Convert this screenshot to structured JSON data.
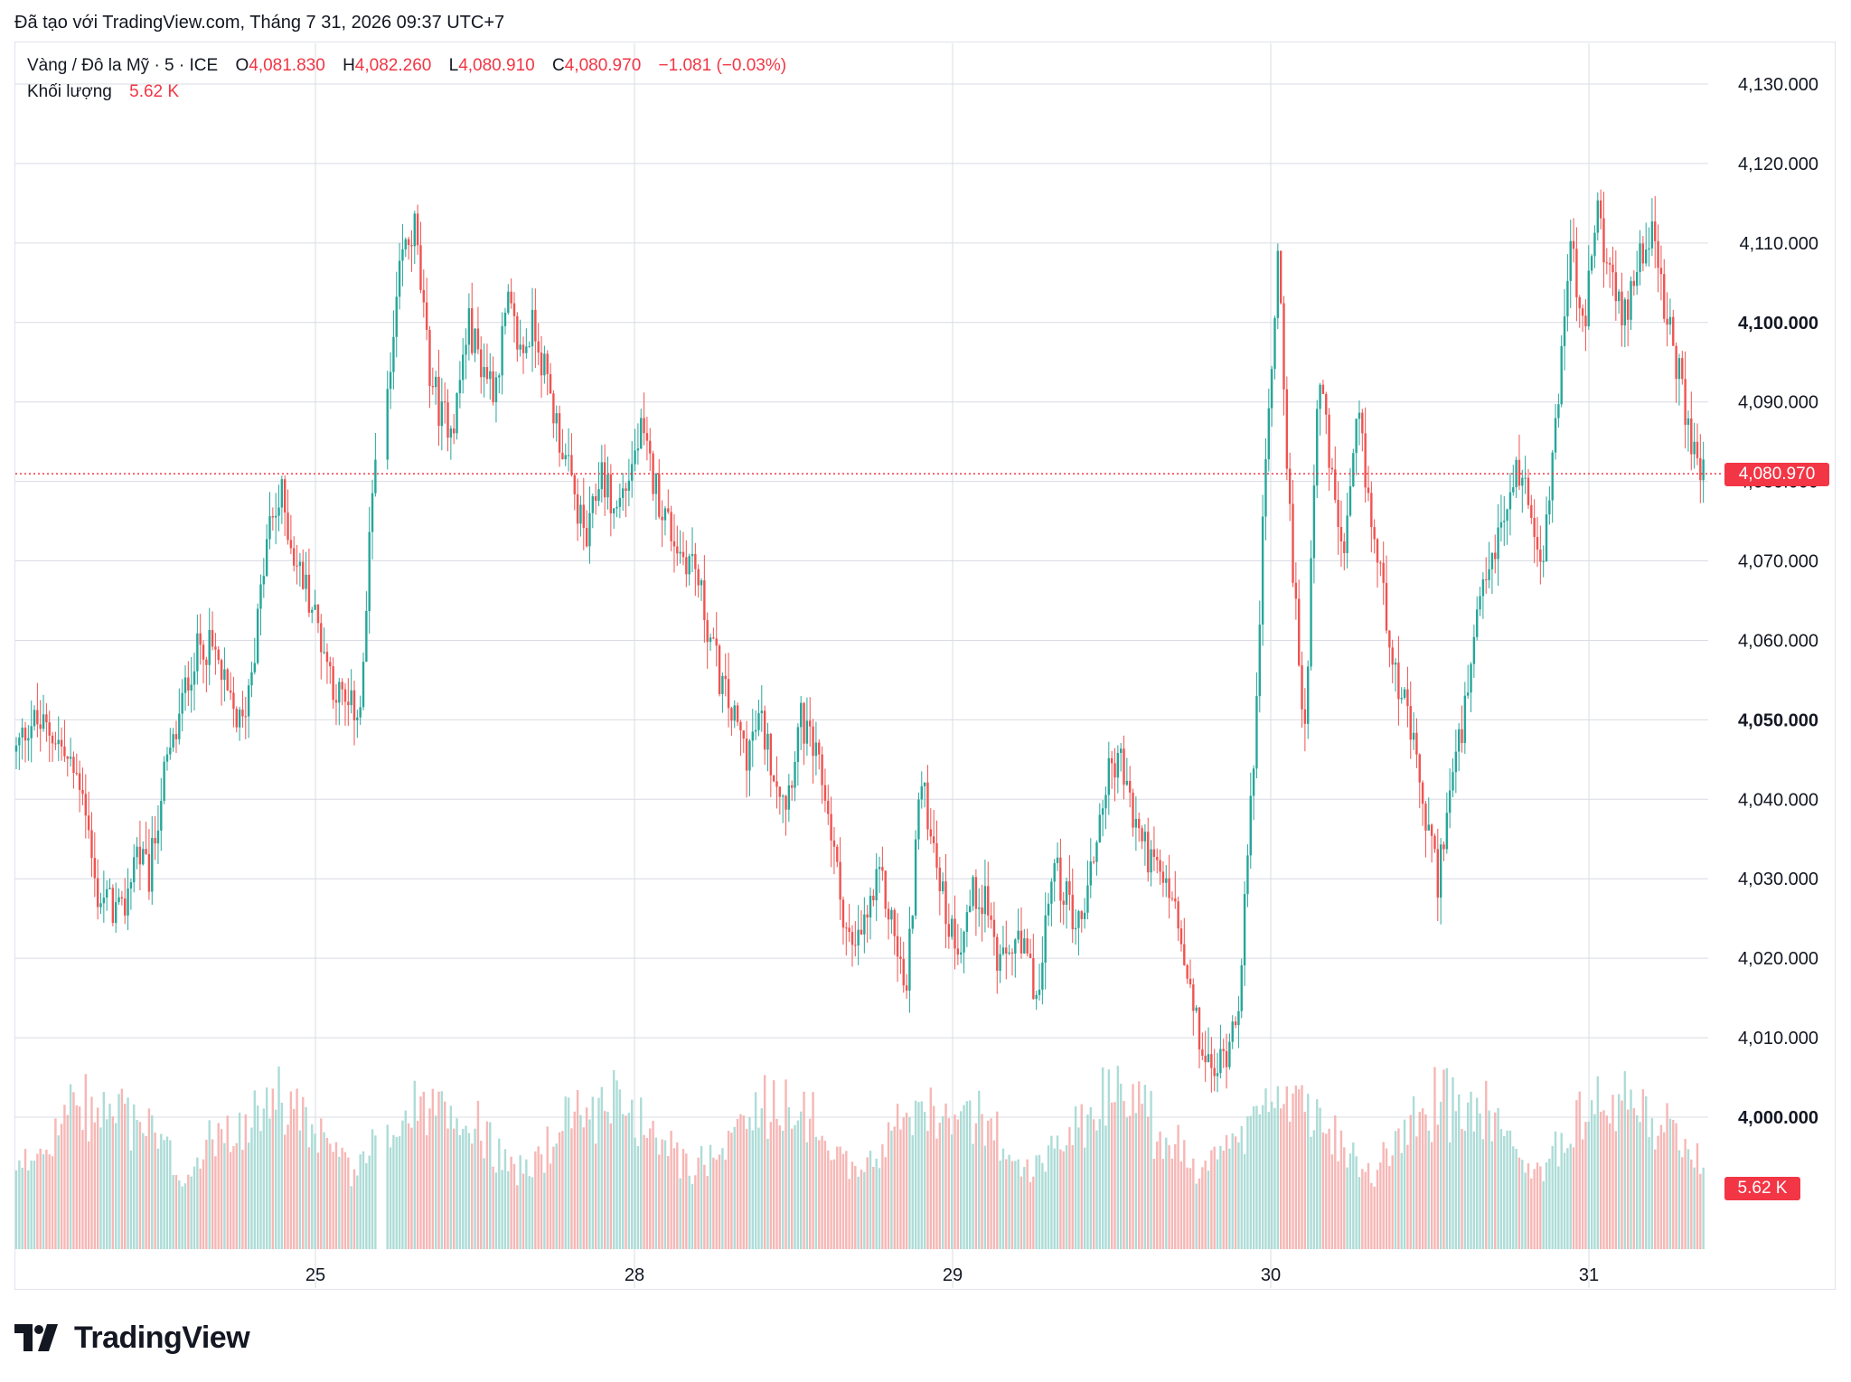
{
  "header": {
    "credit": "Đã tạo với TradingView.com, Tháng 7 31, 2026 09:37 UTC+7"
  },
  "legend": {
    "symbol": "Vàng / Đô la Mỹ · 5 · ICE",
    "open_label": "O",
    "open": "4,081.830",
    "high_label": "H",
    "high": "4,082.260",
    "low_label": "L",
    "low": "4,080.910",
    "close_label": "C",
    "close": "4,080.970",
    "change": "−1.081 (−0.03%)",
    "volume_label": "Khối lượng",
    "volume": "5.62 K"
  },
  "price_tag": "4,080.970",
  "volume_tag": "5.62 K",
  "logo": {
    "text": "TradingView"
  },
  "colors": {
    "up": "#26a69a",
    "down": "#ef5350",
    "label": "#f23645",
    "grid": "#d9dce3"
  },
  "chart_data": {
    "type": "candlestick",
    "interval": "5 min",
    "x_ticks": [
      "25",
      "28",
      "29",
      "30",
      "31"
    ],
    "y_ticks": [
      {
        "value": 4000,
        "label": "4,000.000",
        "bold": true
      },
      {
        "value": 4010,
        "label": "4,010.000",
        "bold": false
      },
      {
        "value": 4020,
        "label": "4,020.000",
        "bold": false
      },
      {
        "value": 4030,
        "label": "4,030.000",
        "bold": false
      },
      {
        "value": 4040,
        "label": "4,040.000",
        "bold": false
      },
      {
        "value": 4050,
        "label": "4,050.000",
        "bold": true
      },
      {
        "value": 4060,
        "label": "4,060.000",
        "bold": false
      },
      {
        "value": 4070,
        "label": "4,070.000",
        "bold": false
      },
      {
        "value": 4080,
        "label": "4,080.000",
        "bold": false
      },
      {
        "value": 4090,
        "label": "4,090.000",
        "bold": false
      },
      {
        "value": 4100,
        "label": "4,100.000",
        "bold": true
      },
      {
        "value": 4110,
        "label": "4,110.000",
        "bold": false
      },
      {
        "value": 4120,
        "label": "4,120.000",
        "bold": false
      },
      {
        "value": 4130,
        "label": "4,130.000",
        "bold": false
      }
    ],
    "y_range": [
      3998,
      4135
    ],
    "last_close": 4080.97,
    "grid": true,
    "approx_close_path": [
      4046,
      4050,
      4049,
      4048,
      4044,
      4042,
      4028,
      4027,
      4025,
      4034,
      4030,
      4042,
      4048,
      4056,
      4060,
      4058,
      4052,
      4049,
      4060,
      4074,
      4078,
      4070,
      4066,
      4060,
      4054,
      4051,
      4052,
      4085,
      4090,
      4108,
      4112,
      4095,
      4088,
      4088,
      4100,
      4095,
      4092,
      4102,
      4096,
      4100,
      4092,
      4085,
      4078,
      4072,
      4082,
      4076,
      4080,
      4086,
      4080,
      4075,
      4071,
      4070,
      4062,
      4055,
      4050,
      4046,
      4050,
      4044,
      4040,
      4050,
      4046,
      4040,
      4028,
      4020,
      4025,
      4030,
      4024,
      4015,
      4042,
      4036,
      4025,
      4022,
      4028,
      4028,
      4018,
      4022,
      4020,
      4015,
      4032,
      4028,
      4024,
      4032,
      4042,
      4046,
      4038,
      4034,
      4030,
      4028,
      4018,
      4010,
      4005,
      4008,
      4015,
      4040,
      4080,
      4110,
      4070,
      4048,
      4095,
      4080,
      4070,
      4088,
      4075,
      4065,
      4055,
      4048,
      4038,
      4030,
      4042,
      4050,
      4062,
      4070,
      4075,
      4082,
      4077,
      4070,
      4090,
      4110,
      4098,
      4115,
      4105,
      4100,
      4108,
      4112,
      4102,
      4095,
      4085,
      4081
    ]
  }
}
